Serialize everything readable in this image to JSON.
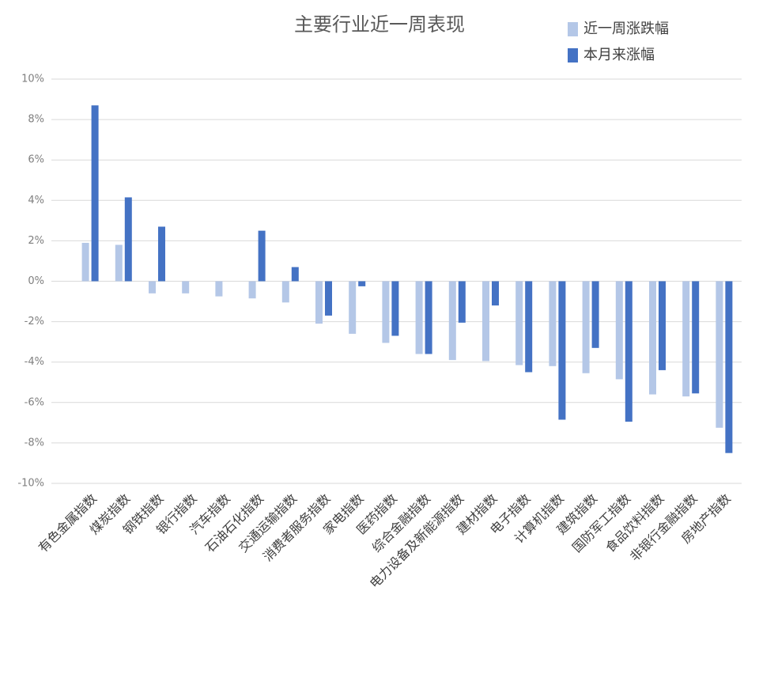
{
  "chart_data": {
    "type": "bar",
    "title": "主要行业近一周表现",
    "categories": [
      "有色金属指数",
      "煤炭指数",
      "钢铁指数",
      "银行指数",
      "汽车指数",
      "石油石化指数",
      "交通运输指数",
      "消费者服务指数",
      "家电指数",
      "医药指数",
      "综合金融指数",
      "电力设备及新能源指数",
      "建材指数",
      "电子指数",
      "计算机指数",
      "建筑指数",
      "国防军工指数",
      "食品饮料指数",
      "非银行金融指数",
      "房地产指数"
    ],
    "series": [
      {
        "name": "近一周涨跌幅",
        "color": "#b4c7e7",
        "values": [
          1.9,
          1.8,
          -0.6,
          -0.6,
          -0.75,
          -0.85,
          -1.05,
          -2.1,
          -2.6,
          -3.05,
          -3.6,
          -3.9,
          -3.95,
          -4.15,
          -4.2,
          -4.55,
          -4.85,
          -5.6,
          -5.7,
          -7.25
        ]
      },
      {
        "name": "本月来涨幅",
        "color": "#4472c4",
        "values": [
          8.7,
          4.15,
          2.7,
          0,
          0,
          2.5,
          0.7,
          -1.7,
          -0.25,
          -2.7,
          -3.6,
          -2.05,
          -1.2,
          -4.5,
          -6.85,
          -3.3,
          -6.95,
          -4.4,
          -5.55,
          -8.5
        ]
      }
    ],
    "ylim": [
      -10,
      10
    ],
    "yticks": [
      {
        "value": -10,
        "label": "-10%"
      },
      {
        "value": -8,
        "label": "-8%"
      },
      {
        "value": -6,
        "label": "-6%"
      },
      {
        "value": -4,
        "label": "-4%"
      },
      {
        "value": -2,
        "label": "-2%"
      },
      {
        "value": 0,
        "label": "0%"
      },
      {
        "value": 2,
        "label": "2%"
      },
      {
        "value": 4,
        "label": "4%"
      },
      {
        "value": 6,
        "label": "6%"
      },
      {
        "value": 8,
        "label": "8%"
      },
      {
        "value": 10,
        "label": "10%"
      }
    ],
    "grid": true,
    "legend": "top-right"
  }
}
